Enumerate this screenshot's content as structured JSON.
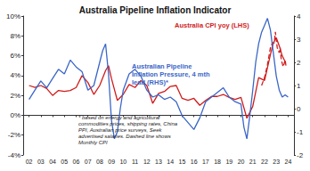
{
  "chart_data": {
    "type": "line",
    "title": "Australia Pipeline Inflation Indicator",
    "annotation": "* based on energy and agricultural commodities prices, shipping rates, China PPI, Australian price surveys, Seek advertised salaries. Dashed line shows Monthly CPI",
    "xlim": [
      2001.5,
      2024.5
    ],
    "xticks": [
      {
        "value": 2002,
        "label": "02"
      },
      {
        "value": 2003,
        "label": "03"
      },
      {
        "value": 2004,
        "label": "04"
      },
      {
        "value": 2005,
        "label": "05"
      },
      {
        "value": 2006,
        "label": "06"
      },
      {
        "value": 2007,
        "label": "07"
      },
      {
        "value": 2008,
        "label": "08"
      },
      {
        "value": 2009,
        "label": "09"
      },
      {
        "value": 2010,
        "label": "10"
      },
      {
        "value": 2011,
        "label": "11"
      },
      {
        "value": 2012,
        "label": "12"
      },
      {
        "value": 2013,
        "label": "13"
      },
      {
        "value": 2014,
        "label": "14"
      },
      {
        "value": 2015,
        "label": "15"
      },
      {
        "value": 2016,
        "label": "16"
      },
      {
        "value": 2017,
        "label": "17"
      },
      {
        "value": 2018,
        "label": "18"
      },
      {
        "value": 2019,
        "label": "19"
      },
      {
        "value": 2020,
        "label": "20"
      },
      {
        "value": 2021,
        "label": "21"
      },
      {
        "value": 2022,
        "label": "22"
      },
      {
        "value": 2023,
        "label": "23"
      },
      {
        "value": 2024,
        "label": "24"
      }
    ],
    "ylim": [
      -4,
      10
    ],
    "yticks": [
      {
        "value": -4,
        "label": "-4%"
      },
      {
        "value": -2,
        "label": "-2%"
      },
      {
        "value": 0,
        "label": "0%"
      },
      {
        "value": 2,
        "label": "2%"
      },
      {
        "value": 4,
        "label": "4%"
      },
      {
        "value": 6,
        "label": "6%"
      },
      {
        "value": 8,
        "label": "8%"
      },
      {
        "value": 10,
        "label": "10%"
      }
    ],
    "y2lim": [
      -2,
      4
    ],
    "y2ticks": [
      -2,
      -1,
      0,
      1,
      2,
      3,
      4
    ],
    "grid": false,
    "series": [
      {
        "name": "Australia CPI yoy (LHS)",
        "color": "#d01c1c",
        "line_style": "solid",
        "x": [
          2002.0,
          2002.5,
          2003.0,
          2003.5,
          2004.0,
          2004.5,
          2005.0,
          2005.5,
          2006.0,
          2006.5,
          2007.0,
          2007.5,
          2008.0,
          2008.5,
          2008.75,
          2009.0,
          2009.5,
          2010.0,
          2010.5,
          2011.0,
          2011.5,
          2012.0,
          2012.5,
          2013.0,
          2013.5,
          2014.0,
          2014.5,
          2015.0,
          2015.5,
          2016.0,
          2016.5,
          2017.0,
          2017.5,
          2018.0,
          2018.5,
          2019.0,
          2019.5,
          2020.0,
          2020.5,
          2021.0,
          2021.5,
          2022.0,
          2022.5,
          2022.75,
          2023.0,
          2023.25,
          2023.5,
          2023.75
        ],
        "values": [
          3.0,
          2.8,
          3.0,
          2.7,
          2.0,
          2.5,
          2.4,
          2.5,
          2.8,
          4.0,
          3.3,
          2.1,
          3.0,
          4.5,
          5.0,
          3.7,
          1.5,
          2.1,
          3.1,
          2.8,
          3.5,
          3.0,
          1.2,
          2.2,
          2.4,
          2.9,
          3.0,
          1.7,
          1.5,
          1.7,
          1.0,
          1.5,
          1.9,
          1.9,
          2.1,
          1.8,
          1.6,
          1.8,
          -0.3,
          0.9,
          3.8,
          3.5,
          6.1,
          7.3,
          7.8,
          7.0,
          6.0,
          5.4
        ]
      },
      {
        "color": "#d01c1c",
        "line_style": "dashed",
        "x": [
          2021.75,
          2022.0,
          2022.25,
          2022.5,
          2022.67,
          2022.83,
          2022.92,
          2023.08,
          2023.25,
          2023.33,
          2023.42,
          2023.58,
          2023.67,
          2023.75,
          2023.83
        ],
        "values": [
          3.0,
          3.8,
          5.1,
          6.8,
          7.3,
          7.3,
          8.4,
          6.8,
          6.3,
          6.8,
          5.6,
          4.9,
          5.2,
          5.6,
          4.9
        ]
      },
      {
        "name": "Australian Pipeline Inflation Pressure, 4 mth lead (RHS)*",
        "color": "#3a66c8",
        "line_style": "solid",
        "axis": "y2",
        "x": [
          2002.0,
          2002.5,
          2003.0,
          2003.5,
          2004.0,
          2004.5,
          2005.0,
          2005.5,
          2006.0,
          2006.5,
          2007.0,
          2007.5,
          2008.0,
          2008.25,
          2008.5,
          2008.75,
          2009.0,
          2009.25,
          2009.5,
          2009.75,
          2010.0,
          2010.5,
          2011.0,
          2011.5,
          2012.0,
          2012.5,
          2013.0,
          2013.5,
          2014.0,
          2014.5,
          2015.0,
          2015.5,
          2016.0,
          2016.5,
          2017.0,
          2017.5,
          2018.0,
          2018.5,
          2019.0,
          2019.5,
          2020.0,
          2020.25,
          2020.5,
          2020.75,
          2021.0,
          2021.25,
          2021.5,
          2021.75,
          2022.0,
          2022.25,
          2022.5,
          2022.75,
          2023.0,
          2023.25,
          2023.5,
          2023.75,
          2024.0
        ],
        "values": [
          0.4,
          0.8,
          1.2,
          0.9,
          1.3,
          1.7,
          1.5,
          2.1,
          1.8,
          1.6,
          0.8,
          1.0,
          2.0,
          2.5,
          2.8,
          1.5,
          -0.5,
          -1.3,
          -1.0,
          0.0,
          0.8,
          1.5,
          1.7,
          1.4,
          0.8,
          0.5,
          0.6,
          0.4,
          0.5,
          0.3,
          -0.3,
          -0.6,
          -0.9,
          -0.4,
          0.3,
          0.5,
          0.7,
          0.9,
          0.5,
          0.3,
          0.2,
          -0.8,
          -1.3,
          -0.3,
          0.8,
          2.0,
          2.8,
          3.3,
          3.6,
          3.9,
          3.4,
          2.4,
          1.4,
          0.8,
          0.5,
          0.6,
          0.5
        ]
      }
    ]
  }
}
